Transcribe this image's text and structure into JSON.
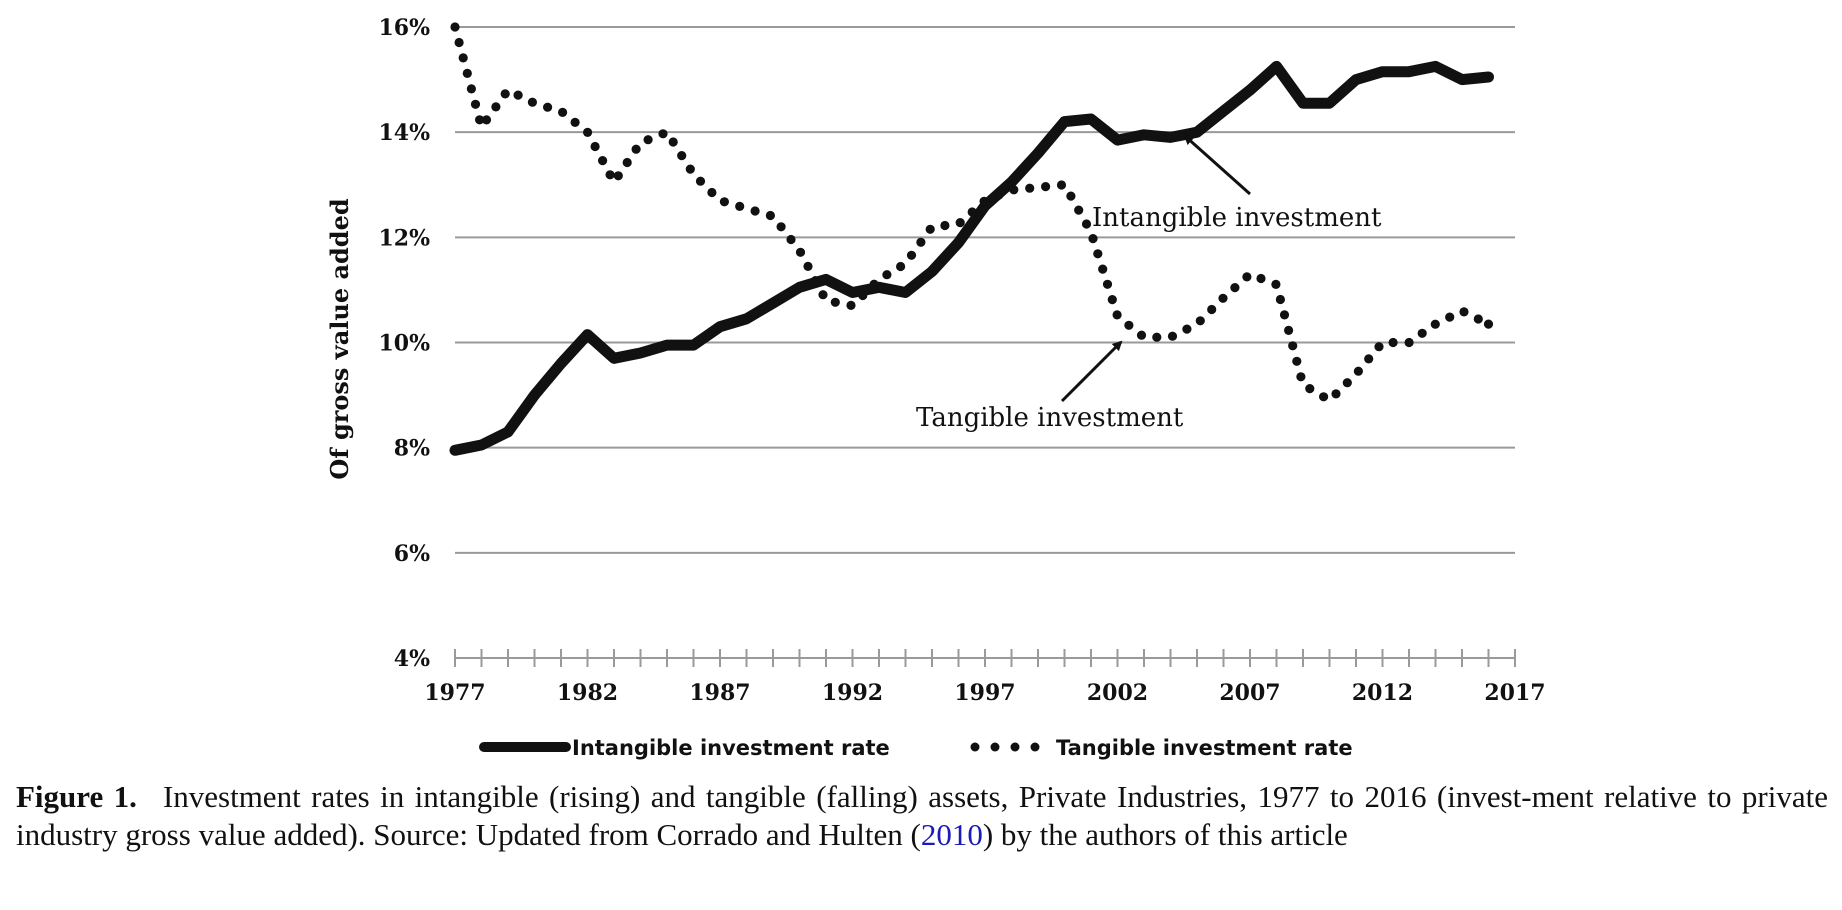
{
  "chart_data": {
    "type": "line",
    "title": "",
    "xlabel": "",
    "ylabel": "Of gross value added",
    "x": [
      1977,
      1978,
      1979,
      1980,
      1981,
      1982,
      1983,
      1984,
      1985,
      1986,
      1987,
      1988,
      1989,
      1990,
      1991,
      1992,
      1993,
      1994,
      1995,
      1996,
      1997,
      1998,
      1999,
      2000,
      2001,
      2002,
      2003,
      2004,
      2005,
      2006,
      2007,
      2008,
      2009,
      2010,
      2011,
      2012,
      2013,
      2014,
      2015,
      2016
    ],
    "xlim": [
      1977,
      2017
    ],
    "xticks": [
      1977,
      1982,
      1987,
      1992,
      1997,
      2002,
      2007,
      2012,
      2017
    ],
    "xtick_labels": [
      "1977",
      "1982",
      "1987",
      "1992",
      "1997",
      "2002",
      "2007",
      "2012",
      "2017"
    ],
    "ylim": [
      4,
      16
    ],
    "yticks": [
      4,
      6,
      8,
      10,
      12,
      14,
      16
    ],
    "ytick_labels": [
      "4%",
      "6%",
      "8%",
      "10%",
      "12%",
      "14%",
      "16%"
    ],
    "grid": "horizontal",
    "legend_position": "bottom",
    "series": [
      {
        "name": "Intangible investment rate",
        "style": "solid",
        "color": "#111111",
        "values": [
          7.95,
          8.05,
          8.3,
          9.0,
          9.6,
          10.15,
          9.7,
          9.8,
          9.95,
          9.95,
          10.3,
          10.45,
          10.75,
          11.05,
          11.2,
          10.95,
          11.05,
          10.95,
          11.35,
          11.9,
          12.6,
          13.05,
          13.6,
          14.2,
          14.25,
          13.85,
          13.95,
          13.9,
          14.0,
          14.4,
          14.8,
          15.25,
          14.55,
          14.55,
          15.0,
          15.15,
          15.15,
          15.25,
          15.0,
          15.05
        ]
      },
      {
        "name": "Tangible investment rate",
        "style": "dotted",
        "color": "#111111",
        "values": [
          16.0,
          14.1,
          14.8,
          14.55,
          14.4,
          14.0,
          13.05,
          13.8,
          14.0,
          13.2,
          12.7,
          12.55,
          12.4,
          11.75,
          10.8,
          10.7,
          11.2,
          11.5,
          12.2,
          12.25,
          12.7,
          12.9,
          12.95,
          13.0,
          12.1,
          10.5,
          10.1,
          10.1,
          10.35,
          10.85,
          11.3,
          11.1,
          9.2,
          8.9,
          9.4,
          10.0,
          10.0,
          10.35,
          10.6,
          10.35
        ]
      }
    ],
    "annotations": [
      {
        "text": "Intangible investment",
        "arrow_x": 2005,
        "arrow_y": 14.0
      },
      {
        "text": "Tangible investment",
        "arrow_x": 2003,
        "arrow_y": 10.0
      }
    ]
  },
  "caption": {
    "label": "Figure 1.",
    "text_before_link": "Investment rates in intangible (rising) and tangible (falling) assets, Private Industries, 1977 to 2016 (invest-ment relative to private industry gross value added). Source: Updated from Corrado and Hulten (",
    "link_text": "2010",
    "text_after_link": ") by the authors of this article"
  },
  "colors": {
    "line": "#111111",
    "grid": "#9a9a9a",
    "axis": "#9a9a9a",
    "link": "#1a1ab8"
  }
}
